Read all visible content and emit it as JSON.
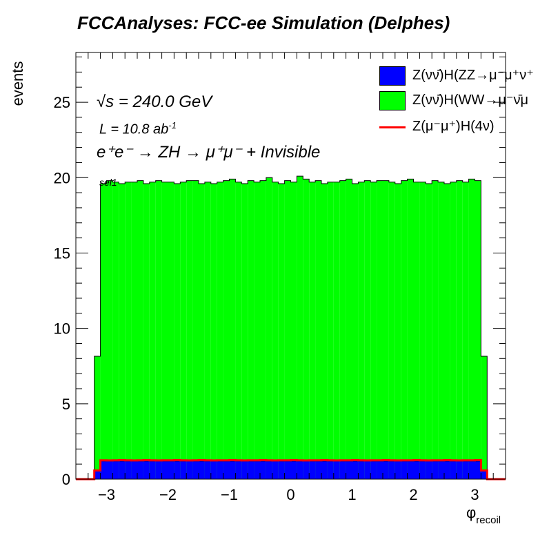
{
  "chart_data": {
    "type": "histogram-stacked",
    "title": "FCCAnalyses: FCC-ee Simulation (Delphes)",
    "xlabel": "φ",
    "xlabel_sub": "recoil",
    "ylabel": "events",
    "xlim": [
      -3.5,
      3.5
    ],
    "ylim": [
      0,
      28.3
    ],
    "x_ticks": [
      -3,
      -2,
      -1,
      0,
      1,
      2,
      3
    ],
    "x_tick_labels": [
      "−3",
      "−2",
      "−1",
      "0",
      "1",
      "2",
      "3"
    ],
    "y_ticks": [
      0,
      5,
      10,
      15,
      20,
      25
    ],
    "y_tick_labels": [
      "0",
      "5",
      "10",
      "15",
      "20",
      "25"
    ],
    "bin_edges_start": -3.5,
    "bin_width": 0.1,
    "series": [
      {
        "name": "Z(νν̄)H(ZZ→μ⁻μ⁺ν⁺",
        "color": "#0000ff",
        "style": "fill",
        "values": [
          0,
          0,
          0,
          0.55,
          1.2,
          1.2,
          1.2,
          1.2,
          1.2,
          1.2,
          1.2,
          1.2,
          1.2,
          1.2,
          1.2,
          1.2,
          1.2,
          1.2,
          1.2,
          1.2,
          1.2,
          1.2,
          1.2,
          1.2,
          1.2,
          1.2,
          1.2,
          1.2,
          1.2,
          1.2,
          1.2,
          1.2,
          1.2,
          1.2,
          1.2,
          1.2,
          1.2,
          1.2,
          1.2,
          1.2,
          1.2,
          1.2,
          1.2,
          1.2,
          1.2,
          1.2,
          1.2,
          1.2,
          1.2,
          1.2,
          1.2,
          1.2,
          1.2,
          1.2,
          1.2,
          1.2,
          1.2,
          1.2,
          1.2,
          1.2,
          1.2,
          1.2,
          1.2,
          1.2,
          1.2,
          1.2,
          0.55,
          0,
          0,
          0
        ]
      },
      {
        "name": "Z(νν̄)H(WW→μ⁻ν̄μ",
        "color": "#00ff00",
        "style": "fill",
        "values": [
          0,
          0,
          0,
          7.6,
          18.4,
          18.6,
          18.5,
          18.4,
          18.5,
          18.5,
          18.6,
          18.4,
          18.5,
          18.6,
          18.5,
          18.5,
          18.4,
          18.5,
          18.6,
          18.6,
          18.4,
          18.5,
          18.4,
          18.5,
          18.6,
          18.7,
          18.5,
          18.4,
          18.6,
          18.5,
          18.6,
          18.8,
          18.5,
          18.4,
          18.6,
          18.5,
          18.9,
          18.7,
          18.5,
          18.6,
          18.4,
          18.5,
          18.5,
          18.6,
          18.7,
          18.4,
          18.5,
          18.6,
          18.5,
          18.6,
          18.6,
          18.5,
          18.4,
          18.6,
          18.7,
          18.5,
          18.5,
          18.4,
          18.6,
          18.5,
          18.4,
          18.5,
          18.6,
          18.5,
          18.7,
          18.6,
          7.6,
          0,
          0,
          0
        ]
      },
      {
        "name": "Z(μ⁻μ⁺)H(4ν)",
        "color": "#ff0000",
        "style": "line",
        "values": [
          0,
          0,
          0,
          0.58,
          1.25,
          1.24,
          1.25,
          1.26,
          1.25,
          1.24,
          1.25,
          1.26,
          1.25,
          1.24,
          1.25,
          1.25,
          1.26,
          1.25,
          1.24,
          1.25,
          1.26,
          1.25,
          1.24,
          1.25,
          1.25,
          1.26,
          1.25,
          1.24,
          1.25,
          1.25,
          1.26,
          1.25,
          1.24,
          1.25,
          1.25,
          1.26,
          1.25,
          1.24,
          1.25,
          1.25,
          1.26,
          1.25,
          1.24,
          1.25,
          1.25,
          1.26,
          1.25,
          1.24,
          1.25,
          1.25,
          1.26,
          1.25,
          1.24,
          1.25,
          1.25,
          1.26,
          1.25,
          1.24,
          1.25,
          1.25,
          1.26,
          1.25,
          1.24,
          1.25,
          1.25,
          1.26,
          0.58,
          0,
          0,
          0
        ]
      }
    ],
    "annotations": {
      "energy": "√s = 240.0 GeV",
      "lumi_prefix": "L = 10.8 ab",
      "lumi_exp": "-1",
      "process": "e⁺e⁻ → ZH → μ⁺μ⁻ + Invisible",
      "selection": "sel1"
    },
    "legend_position": "top-right",
    "grid": false
  }
}
